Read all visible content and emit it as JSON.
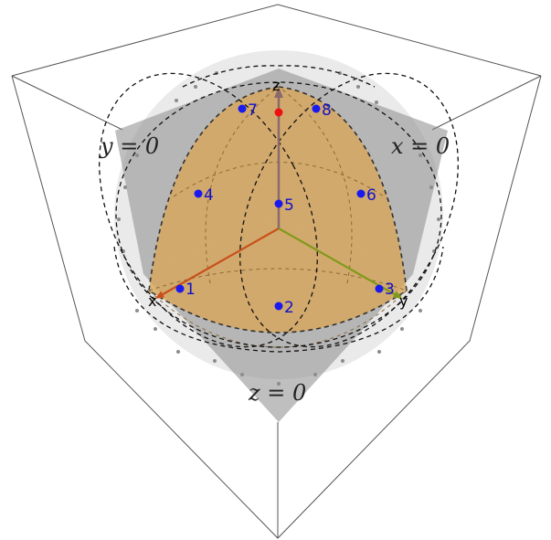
{
  "colors": {
    "background": "#ffffff",
    "frame": "#555555",
    "plane": "#8a8a8a",
    "sphere_shadow": "#e0e0e0",
    "octant": "#d9a75a",
    "x_axis": "#c8501a",
    "y_axis": "#7f9a1a",
    "z_axis": "#8a6a6a",
    "point": "#1a1aee",
    "point_label": "#1010cc",
    "highlight_point": "#ee1111"
  },
  "planes": {
    "x": "x = 0",
    "y": "y = 0",
    "z": "z = 0"
  },
  "axes": {
    "x": "x",
    "y": "y",
    "z": "z"
  },
  "points": [
    {
      "label": "1"
    },
    {
      "label": "2"
    },
    {
      "label": "3"
    },
    {
      "label": "4"
    },
    {
      "label": "5"
    },
    {
      "label": "6"
    },
    {
      "label": "7"
    },
    {
      "label": "8"
    }
  ]
}
